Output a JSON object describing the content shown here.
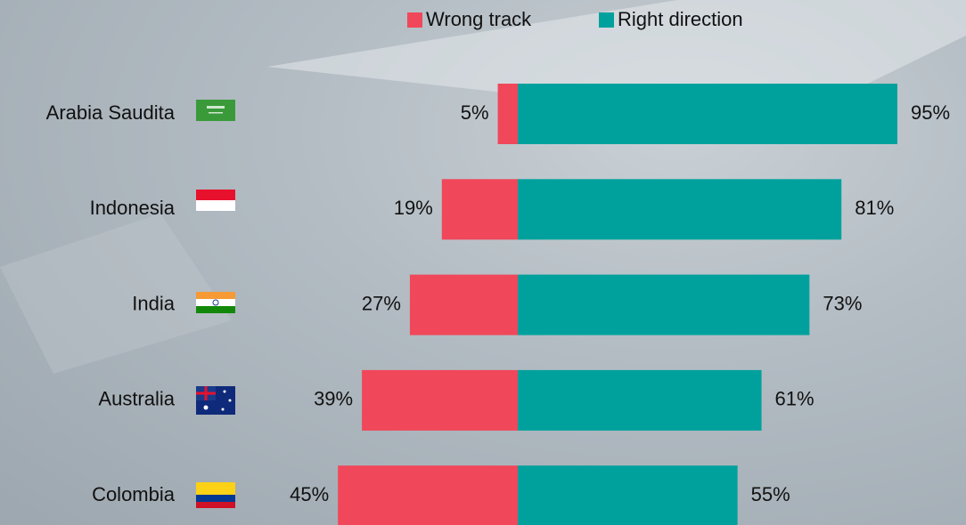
{
  "chart_data": {
    "type": "bar",
    "categories": [
      "Arabia Saudita",
      "Indonesia",
      "India",
      "Australia",
      "Colombia"
    ],
    "series": [
      {
        "name": "Wrong track",
        "color": "#f0475a",
        "values": [
          5,
          19,
          27,
          39,
          45
        ],
        "value_labels": [
          "5%",
          "19%",
          "27%",
          "39%",
          "45%"
        ]
      },
      {
        "name": "Right direction",
        "color": "#00a19d",
        "values": [
          95,
          81,
          73,
          61,
          55
        ],
        "value_labels": [
          "95%",
          "81%",
          "73%",
          "61%",
          "55%"
        ]
      }
    ]
  }
}
